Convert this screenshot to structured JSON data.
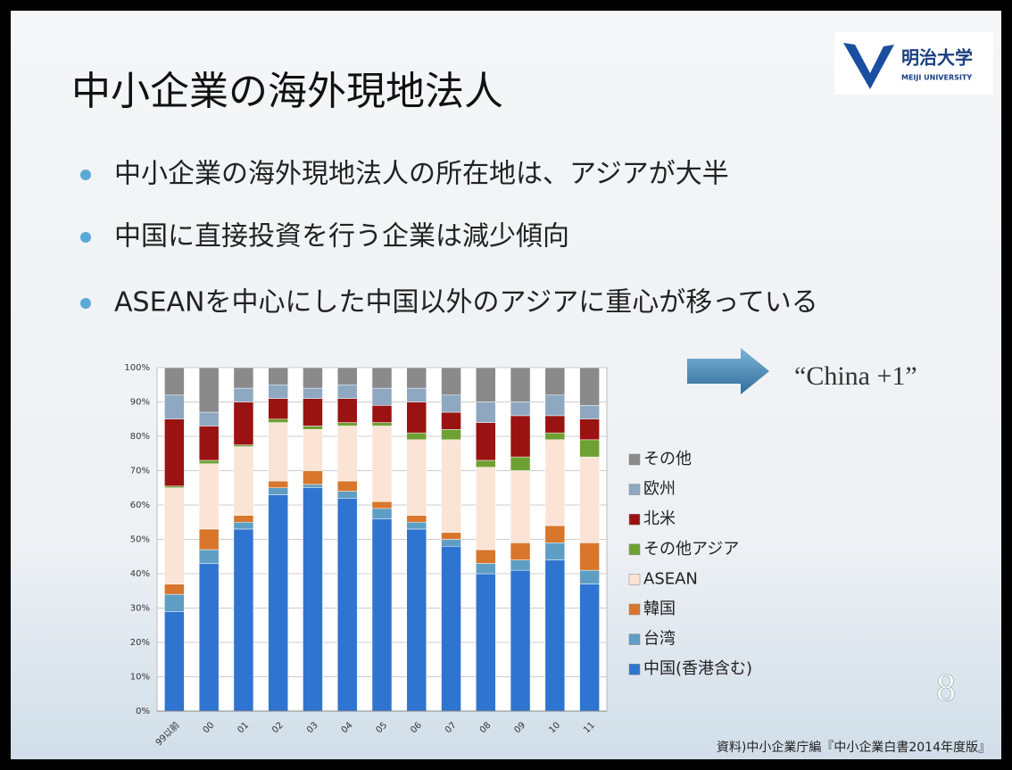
{
  "slide": {
    "title": "中小企業の海外現地法人",
    "bullets": [
      "中小企業の海外現地法人の所在地は、アジアが大半",
      "中国に直接投資を行う企業は減少傾向",
      "ASEANを中心にした中国以外のアジアに重心が移っている"
    ],
    "logo_name": "明治大学",
    "logo_sub": "MEIJI UNIVERSITY",
    "annotation": "“China +1”",
    "page_number": "8",
    "source": "資料)中小企業庁編『中小企業白書2014年度版』"
  },
  "chart_data": {
    "type": "stacked_bar",
    "categories": [
      "99以前",
      "00",
      "01",
      "02",
      "03",
      "04",
      "05",
      "06",
      "07",
      "08",
      "09",
      "10",
      "11"
    ],
    "series": [
      {
        "name": "中国(香港含む)",
        "color": "#2f74d0",
        "values": [
          29,
          43,
          53,
          63,
          65,
          62,
          56,
          53,
          48,
          40,
          41,
          44,
          37
        ]
      },
      {
        "name": "台湾",
        "color": "#5f9ec4",
        "values": [
          5,
          4,
          2,
          2,
          1,
          2,
          3,
          2,
          2,
          3,
          3,
          5,
          4
        ]
      },
      {
        "name": "韓国",
        "color": "#d8762c",
        "values": [
          3,
          6,
          2,
          2,
          4,
          3,
          2,
          2,
          2,
          4,
          5,
          5,
          8
        ]
      },
      {
        "name": "ASEAN",
        "color": "#fbe4d5",
        "values": [
          28,
          19,
          20,
          17,
          12,
          16,
          22,
          22,
          27,
          24,
          21,
          25,
          25
        ]
      },
      {
        "name": "その他アジア",
        "color": "#6fa033",
        "values": [
          0.5,
          1,
          0.5,
          1,
          1,
          1,
          1,
          2,
          3,
          2,
          4,
          2,
          5
        ]
      },
      {
        "name": "北米",
        "color": "#9a1212",
        "values": [
          19.5,
          10,
          12.5,
          6,
          8,
          7,
          5,
          9,
          5,
          11,
          12,
          5,
          6
        ]
      },
      {
        "name": "欧州",
        "color": "#8fa8c2",
        "values": [
          7,
          4,
          4,
          4,
          3,
          4,
          5,
          4,
          5,
          6,
          4,
          6,
          4
        ]
      },
      {
        "name": "その他",
        "color": "#8a8a8a",
        "values": [
          8,
          13,
          6,
          5,
          6,
          5,
          6,
          6,
          8,
          10,
          10,
          8,
          11
        ]
      }
    ],
    "ylim": [
      0,
      100
    ],
    "yticks": [
      {
        "value": 0,
        "label": "0%"
      },
      {
        "value": 10,
        "label": "10%"
      },
      {
        "value": 20,
        "label": "20%"
      },
      {
        "value": 30,
        "label": "30%"
      },
      {
        "value": 40,
        "label": "40%"
      },
      {
        "value": 50,
        "label": "50%"
      },
      {
        "value": 60,
        "label": "60%"
      },
      {
        "value": 70,
        "label": "70%"
      },
      {
        "value": 80,
        "label": "80%"
      },
      {
        "value": 90,
        "label": "90%"
      },
      {
        "value": 100,
        "label": "100%"
      }
    ],
    "grid": true,
    "legend": "right"
  }
}
